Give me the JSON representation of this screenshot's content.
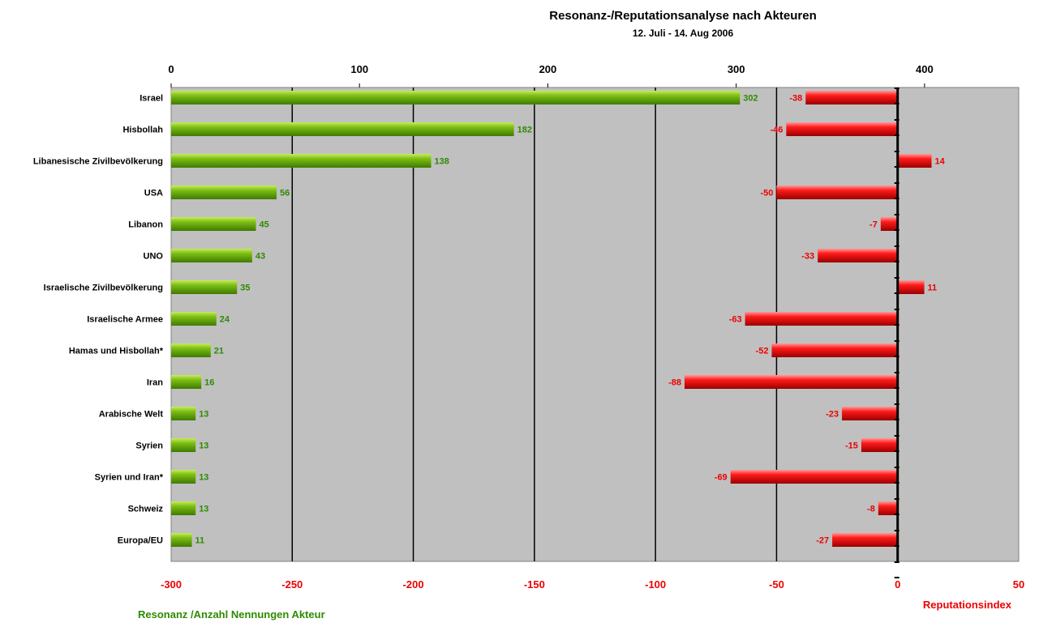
{
  "chart_data": {
    "type": "bar",
    "title": "Resonanz-/Reputationsanalyse nach Akteuren",
    "subtitle": "12. Juli - 14. Aug 2006",
    "categories": [
      "Israel",
      "Hisbollah",
      "Libanesische Zivilbevölkerung",
      "USA",
      "Libanon",
      "UNO",
      "Israelische Zivilbevölkerung",
      "Israelische Armee",
      "Hamas und Hisbollah*",
      "Iran",
      "Arabische Welt",
      "Syrien",
      "Syrien und Iran*",
      "Schweiz",
      "Europa/EU"
    ],
    "series": [
      {
        "name": "Resonanz /Anzahl Nennungen Akteur",
        "axis": "top",
        "color": "#66aa00",
        "label_color": "#2e8b00",
        "values": [
          302,
          182,
          138,
          56,
          45,
          43,
          35,
          24,
          21,
          16,
          13,
          13,
          13,
          13,
          11
        ]
      },
      {
        "name": "Reputationsindex",
        "axis": "bottom",
        "color": "#ee0000",
        "label_color": "#ee0000",
        "values": [
          -38,
          -46,
          14,
          -50,
          -7,
          -33,
          11,
          -63,
          -52,
          -88,
          -23,
          -15,
          -69,
          -8,
          -27
        ]
      }
    ],
    "top_axis": {
      "range": [
        0,
        450
      ],
      "ticks": [
        0,
        100,
        200,
        300,
        400
      ],
      "tick_labels": [
        "0",
        "100",
        "200",
        "300",
        "400"
      ]
    },
    "bottom_axis": {
      "range": [
        -300,
        50
      ],
      "ticks": [
        -300,
        -250,
        -200,
        -150,
        -100,
        -50,
        0,
        50
      ],
      "tick_labels": [
        "-300",
        "-250",
        "-200",
        "-150",
        "-100",
        "-50",
        "0",
        "50"
      ],
      "label_color": "#ee0000"
    },
    "plot_background": "#c0c0c0",
    "grid": true,
    "legend": "bottom"
  }
}
